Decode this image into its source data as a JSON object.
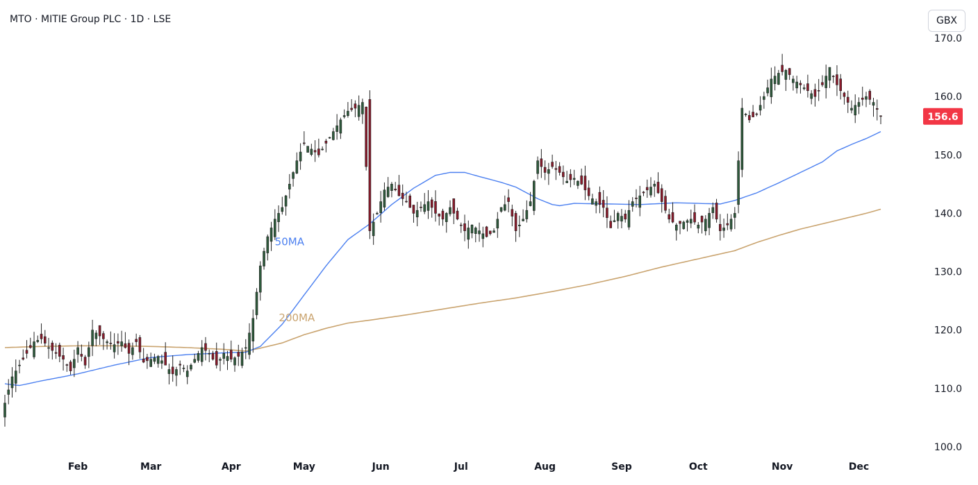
{
  "header": {
    "title": "MTO · MITIE Group PLC · 1D · LSE",
    "currency": "GBX"
  },
  "price_tag": {
    "value": "156.6",
    "color": "#f23645"
  },
  "colors": {
    "up": "#2e5b3c",
    "down": "#8b1a2b",
    "ma50": "#4a7ff0",
    "ma200": "#c9a36e",
    "price_tag": "#f23645"
  },
  "chart_data": {
    "type": "candlestick",
    "title": "MTO · MITIE Group PLC · 1D · LSE",
    "currency": "GBX",
    "ylim": [
      97,
      170
    ],
    "y_ticks": [
      "100.0",
      "110.0",
      "120.0",
      "130.0",
      "140.0",
      "150.0",
      "160.0",
      "170.0"
    ],
    "months": [
      {
        "label": "Feb",
        "day": 20
      },
      {
        "label": "Mar",
        "day": 40
      },
      {
        "label": "Apr",
        "day": 62
      },
      {
        "label": "May",
        "day": 82
      },
      {
        "label": "Jun",
        "day": 103
      },
      {
        "label": "Jul",
        "day": 125
      },
      {
        "label": "Aug",
        "day": 148
      },
      {
        "label": "Sep",
        "day": 169
      },
      {
        "label": "Oct",
        "day": 190
      },
      {
        "label": "Nov",
        "day": 213
      },
      {
        "label": "Dec",
        "day": 234
      }
    ],
    "close_anchors": [
      [
        0,
        107.5
      ],
      [
        2,
        112
      ],
      [
        4,
        114
      ],
      [
        6,
        116
      ],
      [
        8,
        118
      ],
      [
        10,
        118.5
      ],
      [
        12,
        117
      ],
      [
        14,
        116
      ],
      [
        16,
        115
      ],
      [
        18,
        113
      ],
      [
        20,
        117
      ],
      [
        22,
        114
      ],
      [
        24,
        120
      ],
      [
        26,
        119
      ],
      [
        28,
        118
      ],
      [
        30,
        117.5
      ],
      [
        32,
        118
      ],
      [
        34,
        116
      ],
      [
        36,
        118
      ],
      [
        38,
        114.5
      ],
      [
        40,
        115
      ],
      [
        42,
        115.5
      ],
      [
        44,
        114
      ],
      [
        46,
        112.5
      ],
      [
        48,
        114
      ],
      [
        50,
        113
      ],
      [
        52,
        115
      ],
      [
        54,
        117
      ],
      [
        56,
        116
      ],
      [
        58,
        114
      ],
      [
        60,
        116
      ],
      [
        62,
        115
      ],
      [
        64,
        115.5
      ],
      [
        66,
        117
      ],
      [
        68,
        122
      ],
      [
        70,
        131
      ],
      [
        72,
        136
      ],
      [
        74,
        139
      ],
      [
        76,
        141
      ],
      [
        78,
        145
      ],
      [
        80,
        149
      ],
      [
        82,
        152
      ],
      [
        84,
        151
      ],
      [
        86,
        150
      ],
      [
        88,
        152
      ],
      [
        90,
        154
      ],
      [
        92,
        156
      ],
      [
        94,
        157.5
      ],
      [
        96,
        158
      ],
      [
        98,
        159
      ],
      [
        100,
        137
      ],
      [
        102,
        140
      ],
      [
        104,
        144
      ],
      [
        106,
        145
      ],
      [
        108,
        143
      ],
      [
        110,
        142
      ],
      [
        112,
        140
      ],
      [
        114,
        141
      ],
      [
        116,
        142
      ],
      [
        118,
        140
      ],
      [
        120,
        139
      ],
      [
        122,
        141
      ],
      [
        124,
        139
      ],
      [
        126,
        137
      ],
      [
        128,
        138
      ],
      [
        130,
        137
      ],
      [
        132,
        136
      ],
      [
        134,
        137
      ],
      [
        136,
        141
      ],
      [
        138,
        142
      ],
      [
        140,
        137
      ],
      [
        142,
        139
      ],
      [
        144,
        142
      ],
      [
        146,
        149
      ],
      [
        148,
        147
      ],
      [
        150,
        148
      ],
      [
        152,
        147
      ],
      [
        154,
        145.5
      ],
      [
        156,
        146
      ],
      [
        158,
        145
      ],
      [
        160,
        143
      ],
      [
        162,
        142
      ],
      [
        164,
        141
      ],
      [
        166,
        137.5
      ],
      [
        168,
        140
      ],
      [
        170,
        139
      ],
      [
        172,
        142
      ],
      [
        174,
        143
      ],
      [
        176,
        144
      ],
      [
        178,
        145
      ],
      [
        180,
        142
      ],
      [
        182,
        139
      ],
      [
        184,
        138
      ],
      [
        186,
        138.5
      ],
      [
        188,
        139
      ],
      [
        190,
        138
      ],
      [
        192,
        139
      ],
      [
        194,
        141
      ],
      [
        196,
        137
      ],
      [
        198,
        138
      ],
      [
        200,
        140
      ],
      [
        202,
        158
      ],
      [
        204,
        156
      ],
      [
        206,
        157
      ],
      [
        208,
        160
      ],
      [
        210,
        163
      ],
      [
        212,
        164
      ],
      [
        214,
        164.5
      ],
      [
        216,
        163
      ],
      [
        218,
        162
      ],
      [
        220,
        161
      ],
      [
        222,
        160
      ],
      [
        224,
        162
      ],
      [
        226,
        165
      ],
      [
        228,
        162
      ],
      [
        230,
        160
      ],
      [
        232,
        158
      ],
      [
        234,
        159
      ],
      [
        236,
        160
      ],
      [
        238,
        159
      ],
      [
        240,
        156.6
      ]
    ],
    "ma50_anchors": [
      [
        0,
        110.8
      ],
      [
        4,
        110.5
      ],
      [
        10,
        111.3
      ],
      [
        20,
        112.5
      ],
      [
        30,
        114
      ],
      [
        40,
        115.3
      ],
      [
        50,
        115.8
      ],
      [
        60,
        116.1
      ],
      [
        66,
        116.2
      ],
      [
        70,
        117.2
      ],
      [
        76,
        121
      ],
      [
        82,
        126
      ],
      [
        88,
        131
      ],
      [
        94,
        135.5
      ],
      [
        100,
        138.2
      ],
      [
        106,
        141.5
      ],
      [
        112,
        144.3
      ],
      [
        118,
        146.5
      ],
      [
        122,
        147
      ],
      [
        126,
        147
      ],
      [
        130,
        146.3
      ],
      [
        136,
        145.3
      ],
      [
        140,
        144.5
      ],
      [
        146,
        142.5
      ],
      [
        150,
        141.5
      ],
      [
        152,
        141.3
      ],
      [
        156,
        141.7
      ],
      [
        166,
        141.6
      ],
      [
        174,
        141.5
      ],
      [
        184,
        141.8
      ],
      [
        190,
        141.7
      ],
      [
        196,
        141.6
      ],
      [
        200,
        142.2
      ],
      [
        206,
        143.5
      ],
      [
        212,
        145.2
      ],
      [
        218,
        147
      ],
      [
        224,
        148.8
      ],
      [
        228,
        150.7
      ],
      [
        232,
        151.8
      ],
      [
        236,
        152.8
      ],
      [
        240,
        154
      ]
    ],
    "ma200_anchors": [
      [
        0,
        117
      ],
      [
        10,
        117.2
      ],
      [
        20,
        117.3
      ],
      [
        30,
        117.3
      ],
      [
        40,
        117.2
      ],
      [
        50,
        117
      ],
      [
        60,
        116.7
      ],
      [
        66,
        116.4
      ],
      [
        70,
        116.9
      ],
      [
        76,
        117.8
      ],
      [
        82,
        119.2
      ],
      [
        88,
        120.3
      ],
      [
        94,
        121.2
      ],
      [
        100,
        121.7
      ],
      [
        110,
        122.6
      ],
      [
        120,
        123.6
      ],
      [
        130,
        124.6
      ],
      [
        140,
        125.5
      ],
      [
        150,
        126.6
      ],
      [
        160,
        127.8
      ],
      [
        170,
        129.2
      ],
      [
        180,
        130.8
      ],
      [
        190,
        132.2
      ],
      [
        200,
        133.6
      ],
      [
        206,
        135
      ],
      [
        212,
        136.2
      ],
      [
        218,
        137.3
      ],
      [
        224,
        138.2
      ],
      [
        230,
        139.1
      ],
      [
        236,
        140
      ],
      [
        240,
        140.7
      ]
    ],
    "series": [
      {
        "name": "50MA"
      },
      {
        "name": "200MA"
      }
    ],
    "annotations": [
      {
        "text": "50MA",
        "day": 78,
        "price": 134.5
      },
      {
        "text": "200MA",
        "day": 80,
        "price": 121.5
      }
    ],
    "grid": false
  }
}
